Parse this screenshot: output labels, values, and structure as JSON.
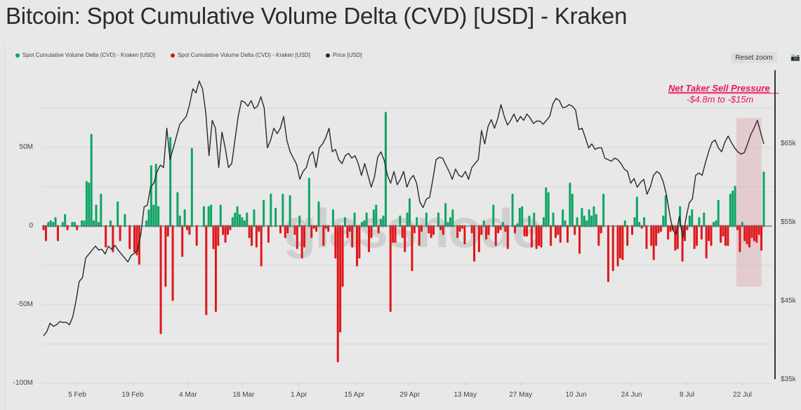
{
  "title": "Bitcoin: Spot Cumulative Volume Delta (CVD) [USD] - Kraken",
  "toolbar": {
    "reset_zoom_label": "Reset zoom",
    "camera_icon": "camera-icon"
  },
  "watermark": "glassnode",
  "colors": {
    "positive": "#0ea564",
    "negative": "#e0161a",
    "price": "#2a2a2a",
    "annotation": "#e8175d",
    "highlight": "rgba(220,150,160,0.35)",
    "background": "#e8e8e8"
  },
  "chart_data": {
    "type": "bar",
    "title": "Bitcoin: Spot Cumulative Volume Delta (CVD) [USD] - Kraken",
    "legend": [
      {
        "label": "Spot Cumulative Volume Delta (CVD) - Kraken [USD]",
        "color": "#0ea564"
      },
      {
        "label": "Spot Cumulative Volume Delta (CVD) - Kraken [USD]",
        "color": "#e0161a"
      },
      {
        "label": "Price [USD]",
        "color": "#2a2a2a"
      }
    ],
    "legend_position": "top-left",
    "grid": true,
    "y_left": {
      "ticks": [
        {
          "v": 50,
          "label": "50M"
        },
        {
          "v": 0,
          "label": "0"
        },
        {
          "v": -50,
          "label": "-50M"
        },
        {
          "v": -100,
          "label": "-100M"
        }
      ],
      "range": [
        -100,
        97
      ],
      "unit": "M USD"
    },
    "y_right": {
      "ticks": [
        {
          "v": 65,
          "label": "$65k"
        },
        {
          "v": 55,
          "label": "$55k"
        },
        {
          "v": 45,
          "label": "$45k"
        },
        {
          "v": 35,
          "label": "$35k"
        }
      ],
      "range": [
        35,
        73
      ],
      "unit": "k USD"
    },
    "x_ticks": [
      {
        "day": 9,
        "label": "5 Feb"
      },
      {
        "day": 23,
        "label": "19 Feb"
      },
      {
        "day": 37,
        "label": "4 Mar"
      },
      {
        "day": 51,
        "label": "18 Mar"
      },
      {
        "day": 65,
        "label": "1 Apr"
      },
      {
        "day": 79,
        "label": "15 Apr"
      },
      {
        "day": 93,
        "label": "29 Apr"
      },
      {
        "day": 107,
        "label": "13 May"
      },
      {
        "day": 121,
        "label": "27 May"
      },
      {
        "day": 135,
        "label": "10 Jun"
      },
      {
        "day": 149,
        "label": "24 Jun"
      },
      {
        "day": 163,
        "label": "8 Jul"
      },
      {
        "day": 177,
        "label": "22 Jul"
      }
    ],
    "x_range_days": [
      0,
      183
    ],
    "cvd_values_musd": [
      -2,
      -9,
      2,
      3,
      2,
      5,
      -9,
      0,
      2,
      7,
      -2,
      0,
      2,
      2,
      -2,
      0,
      3,
      3,
      28,
      27,
      58,
      3,
      13,
      2,
      20,
      0,
      -13,
      0,
      3,
      -16,
      0,
      15,
      -9,
      0,
      7,
      0,
      -14,
      0,
      -16,
      -18,
      -24,
      0,
      0,
      3,
      10,
      38,
      13,
      39,
      12,
      -68,
      0,
      -38,
      -6,
      56,
      -47,
      0,
      21,
      6,
      -19,
      10,
      -2,
      -5,
      49,
      0,
      -12,
      0,
      0,
      12,
      -56,
      12,
      13,
      -14,
      -54,
      -12,
      13,
      -5,
      -10,
      -5,
      -2,
      5,
      8,
      12,
      7,
      5,
      3,
      8,
      -7,
      -12,
      10,
      -13,
      -3,
      -25,
      16,
      0,
      -10,
      20,
      0,
      11,
      0,
      -4,
      20,
      -7,
      -4,
      19,
      0,
      -5,
      -14,
      6,
      -20,
      -13,
      0,
      30,
      -7,
      -1,
      -3,
      15,
      0,
      -12,
      -1,
      -3,
      0,
      10,
      -20,
      -86,
      -67,
      -38,
      5,
      -7,
      -3,
      -13,
      8,
      -25,
      -20,
      2,
      3,
      8,
      -16,
      -7,
      10,
      13,
      -4,
      4,
      6,
      72,
      0,
      -54,
      -10,
      -10,
      0,
      6,
      -7,
      -16,
      8,
      17,
      -28,
      -4,
      5,
      -12,
      -3,
      0,
      8,
      -4,
      -7,
      -5,
      0,
      8,
      -2,
      -5,
      14,
      2,
      5,
      10,
      0,
      -7,
      -3,
      -1,
      -11,
      0,
      0,
      -4,
      -22,
      0,
      -16,
      -5,
      3,
      -8,
      -5,
      0,
      13,
      -12,
      -4,
      -2,
      2,
      -3,
      -14,
      0,
      20,
      -4,
      1,
      11,
      12,
      -6,
      -6,
      6,
      -13,
      8,
      -14,
      -12,
      -13,
      5,
      24,
      21,
      -12,
      8,
      -7,
      -5,
      -10,
      10,
      3,
      -10,
      27,
      20,
      -5,
      5,
      -17,
      11,
      6,
      3,
      10,
      6,
      12,
      7,
      -12,
      -4,
      20,
      0,
      -35,
      0,
      -28,
      0,
      -25,
      -20,
      -21,
      3,
      -12,
      0,
      -5,
      5,
      18,
      2,
      -1,
      5,
      -14,
      0,
      -12,
      -21,
      -12,
      -4,
      -3,
      6,
      19,
      -8,
      -3,
      -2,
      -15,
      -14,
      12,
      -22,
      -9,
      -2,
      6,
      10,
      -14,
      -12,
      5,
      -8,
      8,
      -20,
      -9,
      -12,
      2,
      3,
      16,
      -10,
      -6,
      -12,
      -12,
      20,
      22,
      25,
      -2,
      -16,
      2,
      -9,
      -11,
      -13,
      -7,
      -9,
      -10,
      -5,
      -15,
      34
    ],
    "price_kusd": [
      40.6,
      41.1,
      42.2,
      41.8,
      42.0,
      42.4,
      42.3,
      42.3,
      42.0,
      43.0,
      45.0,
      47.5,
      48.0,
      50.5,
      51.0,
      51.5,
      52.0,
      51.5,
      51.6,
      51.0,
      52.0,
      51.6,
      52.1,
      51.5,
      51.0,
      50.5,
      50.0,
      50.8,
      51.1,
      51.5,
      53.5,
      57.0,
      57.2,
      59.5,
      60.0,
      61.5,
      62.3,
      62.0,
      67.0,
      63.0,
      64.5,
      66.0,
      67.5,
      68.0,
      68.5,
      70.0,
      72.0,
      71.5,
      73.0,
      72.0,
      69.0,
      63.5,
      68.0,
      67.0,
      62.0,
      66.5,
      64.5,
      62.0,
      62.5,
      65.5,
      68.5,
      70.5,
      70.3,
      69.8,
      70.5,
      69.5,
      69.8,
      71.0,
      69.6,
      64.5,
      65.5,
      67.0,
      66.3,
      67.0,
      68.5,
      65.5,
      64.0,
      63.2,
      62.4,
      60.5,
      61.5,
      62.0,
      63.5,
      64.0,
      62.0,
      64.5,
      65.0,
      65.8,
      67.0,
      64.0,
      64.3,
      63.0,
      62.5,
      63.5,
      63.8,
      63.2,
      63.5,
      62.5,
      61.0,
      62.5,
      61.0,
      59.5,
      60.8,
      63.3,
      64.0,
      62.9,
      61.0,
      60.0,
      61.5,
      59.8,
      60.5,
      61.5,
      59.5,
      60.5,
      61.0,
      60.0,
      57.6,
      56.9,
      58.0,
      58.2,
      60.5,
      63.0,
      63.3,
      63.2,
      62.3,
      61.5,
      60.5,
      61.8,
      61.0,
      60.8,
      61.5,
      60.5,
      62.0,
      62.5,
      63.0,
      66.7,
      65.0,
      67.2,
      68.1,
      67.0,
      68.2,
      70.0,
      68.5,
      67.4,
      68.0,
      68.8,
      67.8,
      68.5,
      68.0,
      68.8,
      68.3,
      67.6,
      67.9,
      67.9,
      67.5,
      68.0,
      68.5,
      70.1,
      70.8,
      70.5,
      69.6,
      69.7,
      70.0,
      69.8,
      69.3,
      66.8,
      67.0,
      65.8,
      64.5,
      65.0,
      64.3,
      64.5,
      64.5,
      63.2,
      63.0,
      62.8,
      63.2,
      63.0,
      62.5,
      61.8,
      61.5,
      60.0,
      60.6,
      59.5,
      60.1,
      60.5,
      58.6,
      59.5,
      61.0,
      61.5,
      61.2,
      60.2,
      58.5,
      56.0,
      54.0,
      53.5,
      55.8,
      53.0,
      55.5,
      57.5,
      58.0,
      61.0,
      61.3,
      61.0,
      62.6,
      64.0,
      65.2,
      65.5,
      64.5,
      64.0,
      65.2,
      66.0,
      65.2,
      64.5,
      64.0,
      63.7,
      63.9,
      65.0,
      66.2,
      67.0,
      68.0,
      66.5,
      65.0
    ],
    "annotation": {
      "title": "Net Taker Sell Pressure",
      "subtitle": "-$4.8m to -$15m",
      "highlight_days": [
        176,
        182
      ]
    }
  }
}
